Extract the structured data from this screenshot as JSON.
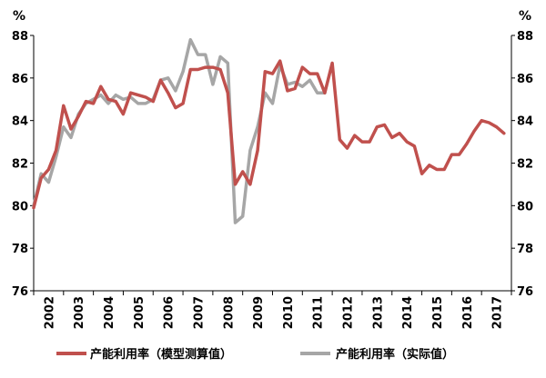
{
  "chart_data": {
    "type": "line",
    "unit_left": "%",
    "unit_right": "%",
    "ylim": [
      76,
      88
    ],
    "yticks": [
      "76",
      "78",
      "80",
      "82",
      "84",
      "86",
      "88"
    ],
    "xlim": [
      2002,
      2018
    ],
    "xticks": [
      "2002",
      "2003",
      "2004",
      "2005",
      "2006",
      "2007",
      "2008",
      "2009",
      "2010",
      "2011",
      "2012",
      "2013",
      "2014",
      "2015",
      "2016",
      "2017"
    ],
    "grid": false,
    "legend_position": "bottom",
    "series": [
      {
        "name": "产能利用率（模型测算值）",
        "color": "#c0504d",
        "points": [
          [
            2002.0,
            79.9
          ],
          [
            2002.25,
            81.3
          ],
          [
            2002.5,
            81.7
          ],
          [
            2002.75,
            82.6
          ],
          [
            2003.0,
            84.7
          ],
          [
            2003.25,
            83.6
          ],
          [
            2003.5,
            84.2
          ],
          [
            2003.75,
            84.9
          ],
          [
            2004.0,
            84.8
          ],
          [
            2004.25,
            85.6
          ],
          [
            2004.5,
            85.0
          ],
          [
            2004.75,
            84.9
          ],
          [
            2005.0,
            84.3
          ],
          [
            2005.25,
            85.3
          ],
          [
            2005.5,
            85.2
          ],
          [
            2005.75,
            85.1
          ],
          [
            2006.0,
            84.9
          ],
          [
            2006.25,
            85.9
          ],
          [
            2006.5,
            85.3
          ],
          [
            2006.75,
            84.6
          ],
          [
            2007.0,
            84.8
          ],
          [
            2007.25,
            86.4
          ],
          [
            2007.5,
            86.4
          ],
          [
            2007.75,
            86.5
          ],
          [
            2008.0,
            86.5
          ],
          [
            2008.25,
            86.4
          ],
          [
            2008.5,
            85.3
          ],
          [
            2008.75,
            81.0
          ],
          [
            2009.0,
            81.6
          ],
          [
            2009.25,
            81.0
          ],
          [
            2009.5,
            82.6
          ],
          [
            2009.75,
            86.3
          ],
          [
            2010.0,
            86.2
          ],
          [
            2010.25,
            86.8
          ],
          [
            2010.5,
            85.4
          ],
          [
            2010.75,
            85.5
          ],
          [
            2011.0,
            86.5
          ],
          [
            2011.25,
            86.2
          ],
          [
            2011.5,
            86.2
          ],
          [
            2011.75,
            85.3
          ],
          [
            2012.0,
            86.7
          ],
          [
            2012.25,
            83.1
          ],
          [
            2012.5,
            82.7
          ],
          [
            2012.75,
            83.3
          ],
          [
            2013.0,
            83.0
          ],
          [
            2013.25,
            83.0
          ],
          [
            2013.5,
            83.7
          ],
          [
            2013.75,
            83.8
          ],
          [
            2014.0,
            83.2
          ],
          [
            2014.25,
            83.4
          ],
          [
            2014.5,
            83.0
          ],
          [
            2014.75,
            82.8
          ],
          [
            2015.0,
            81.5
          ],
          [
            2015.25,
            81.9
          ],
          [
            2015.5,
            81.7
          ],
          [
            2015.75,
            81.7
          ],
          [
            2016.0,
            82.4
          ],
          [
            2016.25,
            82.4
          ],
          [
            2016.5,
            82.9
          ],
          [
            2016.75,
            83.5
          ],
          [
            2017.0,
            84.0
          ],
          [
            2017.25,
            83.9
          ],
          [
            2017.5,
            83.7
          ],
          [
            2017.75,
            83.4
          ]
        ]
      },
      {
        "name": "产能利用率（实际值）",
        "color": "#a6a6a6",
        "points": [
          [
            2002.0,
            80.0
          ],
          [
            2002.25,
            81.5
          ],
          [
            2002.5,
            81.1
          ],
          [
            2002.75,
            82.3
          ],
          [
            2003.0,
            83.7
          ],
          [
            2003.25,
            83.2
          ],
          [
            2003.5,
            84.3
          ],
          [
            2003.75,
            84.8
          ],
          [
            2004.0,
            85.0
          ],
          [
            2004.25,
            85.2
          ],
          [
            2004.5,
            84.8
          ],
          [
            2004.75,
            85.2
          ],
          [
            2005.0,
            85.0
          ],
          [
            2005.25,
            85.1
          ],
          [
            2005.5,
            84.8
          ],
          [
            2005.75,
            84.8
          ],
          [
            2006.0,
            85.0
          ],
          [
            2006.25,
            85.9
          ],
          [
            2006.5,
            86.0
          ],
          [
            2006.75,
            85.4
          ],
          [
            2007.0,
            86.3
          ],
          [
            2007.25,
            87.8
          ],
          [
            2007.5,
            87.1
          ],
          [
            2007.75,
            87.1
          ],
          [
            2008.0,
            85.7
          ],
          [
            2008.25,
            87.0
          ],
          [
            2008.5,
            86.7
          ],
          [
            2008.75,
            79.2
          ],
          [
            2009.0,
            79.5
          ],
          [
            2009.25,
            82.6
          ],
          [
            2009.5,
            83.7
          ],
          [
            2009.75,
            85.3
          ],
          [
            2010.0,
            84.8
          ],
          [
            2010.25,
            86.6
          ],
          [
            2010.5,
            85.7
          ],
          [
            2010.75,
            85.8
          ],
          [
            2011.0,
            85.6
          ],
          [
            2011.25,
            85.9
          ],
          [
            2011.5,
            85.3
          ],
          [
            2011.75,
            85.3
          ]
        ]
      }
    ]
  }
}
